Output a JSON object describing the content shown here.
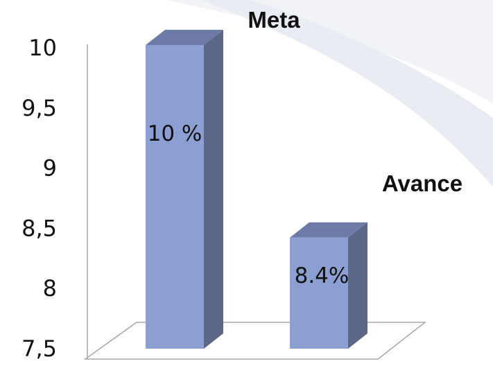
{
  "chart_data": {
    "type": "bar",
    "categories": [
      "Meta",
      "Avance"
    ],
    "values": [
      10,
      8.4
    ],
    "data_labels": [
      "10 %",
      "8.4%"
    ],
    "yticks": [
      "7,5",
      "8",
      "8,5",
      "9",
      "9,5",
      "10"
    ],
    "ylim": [
      7.5,
      10
    ],
    "grid": false,
    "three_d": true,
    "colors": {
      "bar_front": "#8b9fd2",
      "bar_side": "#5c6787",
      "bar_top": "#6d7ba6",
      "axis": "#a6a6a6",
      "background_swoosh": "#e9edf3"
    }
  }
}
